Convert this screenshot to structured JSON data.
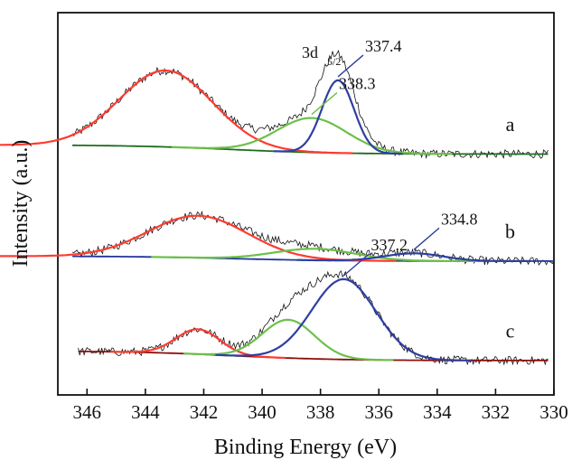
{
  "chart_data": {
    "type": "line",
    "title": "",
    "xlabel": "Binding Energy (eV)",
    "ylabel": "Intensity (a.u.)",
    "xlim": [
      347,
      330
    ],
    "x_reversed": true,
    "yticks_shown": false,
    "xticks": [
      346,
      344,
      342,
      340,
      338,
      336,
      334,
      332,
      330
    ],
    "xtick_labels": [
      "346",
      "344",
      "342",
      "340",
      "338",
      "336",
      "334",
      "332",
      "330"
    ],
    "orbital_label": {
      "main": "3d",
      "sub": "5/2"
    },
    "traces": [
      {
        "label": "a",
        "offset": 0.63,
        "background_color": "#1e6b1e",
        "x_range": [
          346.5,
          330.2
        ],
        "peaks": [
          {
            "center": 343.3,
            "height": 0.2,
            "width": 1.6,
            "color": "#ff3b30"
          },
          {
            "center": 338.3,
            "height": 0.09,
            "width": 1.2,
            "color": "#6cc04a",
            "label": "338.3"
          },
          {
            "center": 337.4,
            "height": 0.19,
            "width": 0.55,
            "color": "#2f3f9f",
            "label": "337.4"
          }
        ]
      },
      {
        "label": "b",
        "offset": 0.35,
        "background_color": "#22349a",
        "x_range": [
          346.5,
          330.0
        ],
        "peaks": [
          {
            "center": 342.2,
            "height": 0.11,
            "width": 1.7,
            "color": "#ff3b30"
          },
          {
            "center": 338.2,
            "height": 0.03,
            "width": 1.4,
            "color": "#6cc04a"
          },
          {
            "center": 334.8,
            "height": 0.02,
            "width": 1.0,
            "color": "#2f3f9f",
            "label": "334.8"
          }
        ]
      },
      {
        "label": "c",
        "offset": 0.09,
        "background_color": "#8b0f0f",
        "x_range": [
          346.3,
          330.2
        ],
        "peaks": [
          {
            "center": 342.2,
            "height": 0.065,
            "width": 0.75,
            "color": "#ff3b30"
          },
          {
            "center": 339.1,
            "height": 0.1,
            "width": 0.9,
            "color": "#6cc04a"
          },
          {
            "center": 337.2,
            "height": 0.21,
            "width": 1.1,
            "color": "#2f3f9f",
            "label": "337.2"
          }
        ]
      }
    ]
  }
}
